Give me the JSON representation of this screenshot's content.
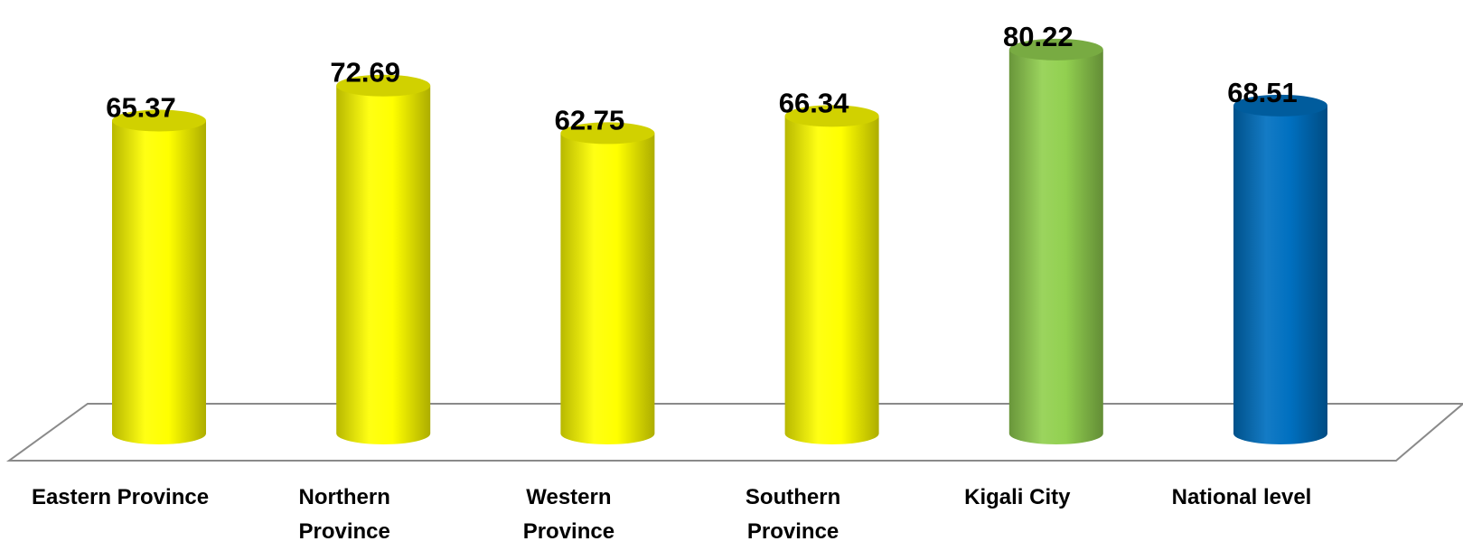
{
  "chart_data": {
    "type": "bar",
    "style": "3d-cylinder",
    "title": "",
    "xlabel": "",
    "ylabel": "",
    "ylim": [
      0,
      85
    ],
    "grid": false,
    "legend": "none",
    "categories": [
      [
        "Eastern Province"
      ],
      [
        "Northern",
        "Province"
      ],
      [
        "Western",
        "Province"
      ],
      [
        "Southern",
        "Province"
      ],
      [
        "Kigali City"
      ],
      [
        "National level"
      ]
    ],
    "values": [
      65.37,
      72.69,
      62.75,
      66.34,
      80.22,
      68.51
    ],
    "value_labels": [
      "65.37",
      "72.69",
      "62.75",
      "66.34",
      "80.22",
      "68.51"
    ],
    "bar_colors": [
      "#ffff00",
      "#ffff00",
      "#ffff00",
      "#ffff00",
      "#92d050",
      "#0070c0"
    ]
  }
}
